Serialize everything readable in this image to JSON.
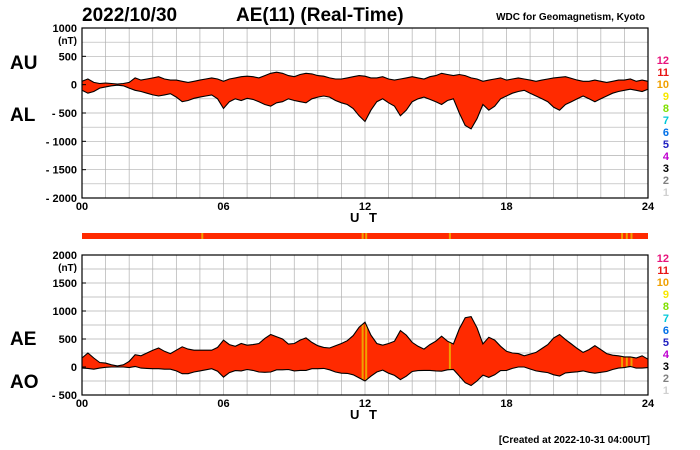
{
  "header": {
    "date": "2022/10/30",
    "title": "AE(11) (Real-Time)",
    "source": "WDC for Geomagnetism, Kyoto"
  },
  "footer": {
    "created": "[Created at 2022-10-31 04:00UT]"
  },
  "legend": {
    "entries": [
      {
        "label": "12",
        "color": "#e8147c"
      },
      {
        "label": "11",
        "color": "#e81414"
      },
      {
        "label": "10",
        "color": "#f0a000"
      },
      {
        "label": "9",
        "color": "#f8e800"
      },
      {
        "label": "8",
        "color": "#80e000"
      },
      {
        "label": "7",
        "color": "#00c8d8"
      },
      {
        "label": "6",
        "color": "#0070e8"
      },
      {
        "label": "5",
        "color": "#2020c0"
      },
      {
        "label": "4",
        "color": "#c000d0"
      },
      {
        "label": "3",
        "color": "#000000"
      },
      {
        "label": "2",
        "color": "#808080"
      },
      {
        "label": "1",
        "color": "#d0d0d0"
      }
    ]
  },
  "colors": {
    "fill": "#ff2a00",
    "highlight": "#f0a000",
    "outline": "#000000",
    "grid": "#b0b0b0"
  },
  "chart_data": [
    {
      "type": "area",
      "upper_label": "AU",
      "lower_label": "AL",
      "unit": "(nT)",
      "xlabel": "U T",
      "xlim": [
        0,
        24
      ],
      "x_ticks": [
        "00",
        "06",
        "12",
        "18",
        "24"
      ],
      "ylim": [
        -2000,
        1000
      ],
      "y_ticks": [
        "1000",
        "500",
        "0",
        "- 500",
        "- 1000",
        "- 1500",
        "- 2000"
      ],
      "x": [
        0,
        0.25,
        0.5,
        0.75,
        1,
        1.25,
        1.5,
        1.75,
        2,
        2.25,
        2.5,
        2.75,
        3,
        3.25,
        3.5,
        3.75,
        4,
        4.25,
        4.5,
        4.75,
        5,
        5.25,
        5.5,
        5.75,
        6,
        6.25,
        6.5,
        6.75,
        7,
        7.25,
        7.5,
        7.75,
        8,
        8.25,
        8.5,
        8.75,
        9,
        9.25,
        9.5,
        9.75,
        10,
        10.25,
        10.5,
        10.75,
        11,
        11.25,
        11.5,
        11.75,
        12,
        12.25,
        12.5,
        12.75,
        13,
        13.25,
        13.5,
        13.75,
        14,
        14.25,
        14.5,
        14.75,
        15,
        15.25,
        15.5,
        15.75,
        16,
        16.25,
        16.5,
        16.75,
        17,
        17.25,
        17.5,
        17.75,
        18,
        18.25,
        18.5,
        18.75,
        19,
        19.25,
        19.5,
        19.75,
        20,
        20.25,
        20.5,
        20.75,
        21,
        21.25,
        21.5,
        21.75,
        22,
        22.25,
        22.5,
        22.75,
        23,
        23.25,
        23.5,
        23.75,
        24
      ],
      "series": [
        {
          "name": "AU",
          "values": [
            60,
            100,
            40,
            20,
            30,
            20,
            10,
            20,
            40,
            120,
            80,
            100,
            120,
            140,
            100,
            80,
            80,
            60,
            40,
            60,
            80,
            100,
            120,
            100,
            60,
            100,
            120,
            140,
            150,
            140,
            120,
            160,
            200,
            220,
            200,
            160,
            140,
            180,
            200,
            190,
            160,
            150,
            120,
            100,
            100,
            120,
            140,
            160,
            150,
            120,
            120,
            140,
            100,
            80,
            100,
            120,
            140,
            120,
            100,
            140,
            160,
            200,
            180,
            160,
            180,
            160,
            120,
            100,
            60,
            80,
            100,
            120,
            80,
            100,
            120,
            100,
            80,
            60,
            80,
            100,
            120,
            130,
            140,
            110,
            80,
            60,
            60,
            80,
            60,
            40,
            60,
            80,
            80,
            100,
            60,
            80,
            60
          ]
        },
        {
          "name": "AL",
          "values": [
            -100,
            -150,
            -120,
            -60,
            -40,
            -20,
            -10,
            -20,
            -60,
            -100,
            -120,
            -150,
            -180,
            -200,
            -180,
            -160,
            -220,
            -300,
            -280,
            -240,
            -220,
            -200,
            -180,
            -250,
            -420,
            -300,
            -250,
            -280,
            -240,
            -260,
            -300,
            -350,
            -380,
            -320,
            -300,
            -250,
            -280,
            -300,
            -320,
            -250,
            -220,
            -200,
            -220,
            -280,
            -320,
            -350,
            -420,
            -550,
            -650,
            -450,
            -300,
            -250,
            -320,
            -380,
            -550,
            -450,
            -300,
            -250,
            -220,
            -260,
            -300,
            -350,
            -280,
            -250,
            -500,
            -720,
            -780,
            -600,
            -350,
            -450,
            -380,
            -250,
            -200,
            -150,
            -120,
            -100,
            -150,
            -200,
            -250,
            -300,
            -400,
            -450,
            -350,
            -300,
            -250,
            -200,
            -250,
            -300,
            -250,
            -200,
            -150,
            -120,
            -100,
            -80,
            -100,
            -120,
            -80
          ]
        }
      ]
    },
    {
      "type": "area",
      "upper_label": "AE",
      "lower_label": "AO",
      "unit": "(nT)",
      "xlabel": "U T",
      "xlim": [
        0,
        24
      ],
      "x_ticks": [
        "00",
        "06",
        "12",
        "18",
        "24"
      ],
      "ylim": [
        -500,
        2000
      ],
      "y_ticks": [
        "2000",
        "1500",
        "1000",
        "500",
        "0",
        "- 500"
      ],
      "x": [
        0,
        0.25,
        0.5,
        0.75,
        1,
        1.25,
        1.5,
        1.75,
        2,
        2.25,
        2.5,
        2.75,
        3,
        3.25,
        3.5,
        3.75,
        4,
        4.25,
        4.5,
        4.75,
        5,
        5.25,
        5.5,
        5.75,
        6,
        6.25,
        6.5,
        6.75,
        7,
        7.25,
        7.5,
        7.75,
        8,
        8.25,
        8.5,
        8.75,
        9,
        9.25,
        9.5,
        9.75,
        10,
        10.25,
        10.5,
        10.75,
        11,
        11.25,
        11.5,
        11.75,
        12,
        12.25,
        12.5,
        12.75,
        13,
        13.25,
        13.5,
        13.75,
        14,
        14.25,
        14.5,
        14.75,
        15,
        15.25,
        15.5,
        15.75,
        16,
        16.25,
        16.5,
        16.75,
        17,
        17.25,
        17.5,
        17.75,
        18,
        18.25,
        18.5,
        18.75,
        19,
        19.25,
        19.5,
        19.75,
        20,
        20.25,
        20.5,
        20.75,
        21,
        21.25,
        21.5,
        21.75,
        22,
        22.25,
        22.5,
        22.75,
        23,
        23.25,
        23.5,
        23.75,
        24
      ],
      "series": [
        {
          "name": "AE",
          "values": [
            160,
            250,
            160,
            80,
            70,
            40,
            20,
            40,
            100,
            220,
            200,
            250,
            300,
            340,
            280,
            240,
            300,
            360,
            320,
            300,
            300,
            300,
            300,
            350,
            480,
            400,
            370,
            420,
            390,
            400,
            420,
            510,
            580,
            540,
            500,
            410,
            420,
            480,
            520,
            440,
            380,
            350,
            340,
            380,
            420,
            470,
            560,
            710,
            800,
            570,
            420,
            390,
            420,
            460,
            650,
            570,
            440,
            370,
            320,
            400,
            460,
            550,
            460,
            410,
            680,
            880,
            900,
            700,
            410,
            530,
            480,
            370,
            280,
            250,
            240,
            200,
            230,
            260,
            330,
            400,
            520,
            580,
            490,
            410,
            330,
            260,
            310,
            380,
            310,
            240,
            210,
            200,
            180,
            180,
            160,
            200,
            140
          ]
        },
        {
          "name": "AO",
          "values": [
            -20,
            -25,
            -40,
            -20,
            -5,
            0,
            0,
            0,
            -10,
            10,
            -20,
            -25,
            -30,
            -30,
            -40,
            -40,
            -70,
            -120,
            -120,
            -90,
            -70,
            -50,
            -30,
            -75,
            -180,
            -100,
            -65,
            -70,
            -45,
            -60,
            -90,
            -95,
            -90,
            -50,
            -50,
            -45,
            -70,
            -60,
            -60,
            -30,
            -30,
            -25,
            -50,
            -90,
            -110,
            -115,
            -140,
            -195,
            -250,
            -165,
            -90,
            -55,
            -110,
            -150,
            -225,
            -165,
            -80,
            -65,
            -60,
            -60,
            -70,
            -75,
            -50,
            -45,
            -160,
            -280,
            -330,
            -250,
            -145,
            -185,
            -140,
            -65,
            -60,
            -25,
            0,
            0,
            -35,
            -70,
            -85,
            -100,
            -140,
            -160,
            -105,
            -95,
            -85,
            -70,
            -95,
            -110,
            -95,
            -80,
            -45,
            -20,
            -10,
            10,
            -20,
            -20,
            -10
          ]
        }
      ],
      "highlight_x": [
        11.9,
        12.05,
        15.6,
        22.9,
        23.1,
        23.3
      ],
      "ribbon_highlight_x": [
        5.1,
        11.9,
        12.05,
        15.6,
        22.9,
        23.1,
        23.3
      ]
    }
  ]
}
